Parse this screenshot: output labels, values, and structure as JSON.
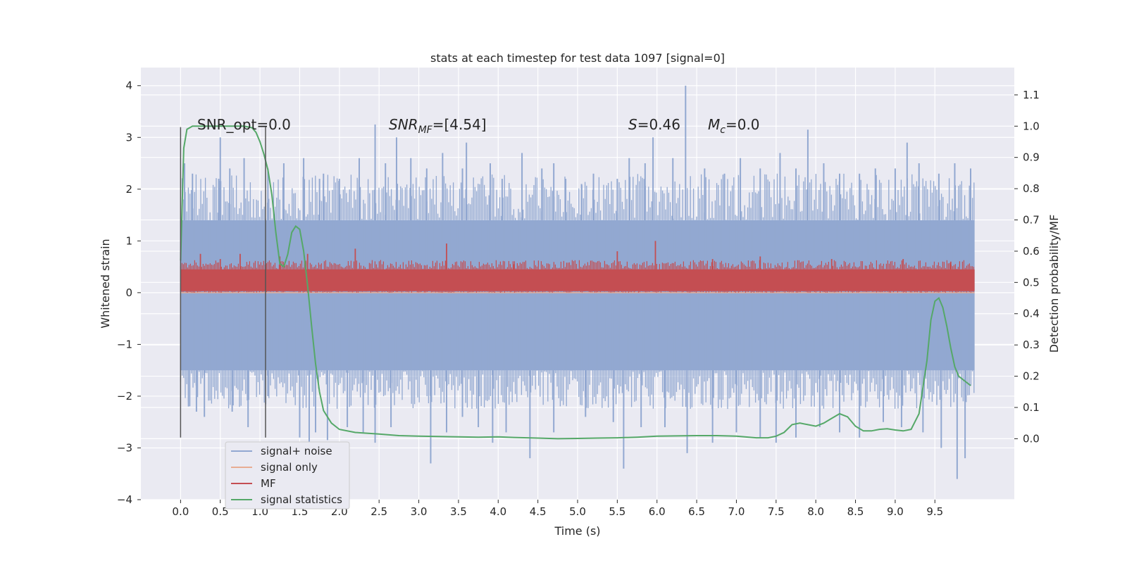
{
  "chart_data": {
    "type": "line",
    "title": "stats at each timestep for test data 1097 [signal=0]",
    "xlabel": "Time (s)",
    "ylabel": "Whitened strain",
    "y2label": "Detection probability/MF",
    "xlim": [
      -0.5,
      10.5
    ],
    "ylim": [
      -4.0,
      4.35
    ],
    "y2lim": [
      -0.195,
      1.1875
    ],
    "x_ticks": [
      "0.0",
      "0.5",
      "1.0",
      "1.5",
      "2.0",
      "2.5",
      "3.0",
      "3.5",
      "4.0",
      "4.5",
      "5.0",
      "5.5",
      "6.0",
      "6.5",
      "7.0",
      "7.5",
      "8.0",
      "8.5",
      "9.0",
      "9.5"
    ],
    "y_ticks": [
      "4",
      "3",
      "2",
      "1",
      "0",
      "−1",
      "−2",
      "−3",
      "−4"
    ],
    "y2_ticks": [
      "1.1",
      "1.0",
      "0.9",
      "0.8",
      "0.7",
      "0.6",
      "0.5",
      "0.4",
      "0.3",
      "0.2",
      "0.1",
      "0.0"
    ],
    "annotations": {
      "snr_opt_label": "SNR_opt=0.0",
      "snr_mf_base": "SNR",
      "snr_mf_sub": "MF",
      "snr_mf_tail": "=[4.54]",
      "s_label": "S",
      "s_value": "=0.46",
      "mc_base": "M",
      "mc_sub": "c",
      "mc_value": "=0.0"
    },
    "vertical_lines_x": [
      0.0,
      1.07
    ],
    "vertical_lines_y_range": [
      -2.8,
      3.2
    ],
    "grid": true,
    "legend_position": "lower-left",
    "series": [
      {
        "name": "signal+ noise",
        "color": "#92a8d1",
        "axis": "left",
        "t_start": 0.0,
        "t_end": 10.0,
        "band_upper": 1.4,
        "band_lower": -1.5,
        "peaks_upper": [
          [
            0.05,
            2.5
          ],
          [
            0.15,
            2.3
          ],
          [
            0.48,
            2.2
          ],
          [
            0.5,
            3.0
          ],
          [
            0.62,
            2.4
          ],
          [
            0.8,
            2.6
          ],
          [
            1.1,
            2.4
          ],
          [
            1.3,
            2.5
          ],
          [
            1.55,
            2.6
          ],
          [
            1.75,
            2.2
          ],
          [
            1.8,
            2.3
          ],
          [
            2.0,
            2.2
          ],
          [
            2.25,
            2.6
          ],
          [
            2.45,
            3.25
          ],
          [
            2.58,
            2.5
          ],
          [
            2.72,
            3.0
          ],
          [
            2.9,
            2.6
          ],
          [
            3.1,
            2.4
          ],
          [
            3.3,
            2.7
          ],
          [
            3.55,
            2.4
          ],
          [
            3.6,
            2.9
          ],
          [
            3.9,
            2.5
          ],
          [
            4.05,
            2.2
          ],
          [
            4.3,
            2.7
          ],
          [
            4.55,
            2.4
          ],
          [
            4.7,
            2.5
          ],
          [
            4.85,
            2.2
          ],
          [
            5.05,
            2.1
          ],
          [
            5.2,
            2.3
          ],
          [
            5.5,
            2.2
          ],
          [
            5.65,
            2.6
          ],
          [
            5.85,
            2.5
          ],
          [
            5.95,
            3.0
          ],
          [
            6.2,
            2.6
          ],
          [
            6.36,
            4.0
          ],
          [
            6.6,
            2.4
          ],
          [
            6.85,
            2.3
          ],
          [
            7.05,
            2.6
          ],
          [
            7.3,
            2.4
          ],
          [
            7.55,
            2.7
          ],
          [
            7.75,
            2.4
          ],
          [
            7.9,
            3.15
          ],
          [
            8.1,
            2.5
          ],
          [
            8.3,
            2.3
          ],
          [
            8.55,
            2.3
          ],
          [
            8.75,
            2.4
          ],
          [
            9.0,
            2.4
          ],
          [
            9.15,
            2.9
          ],
          [
            9.3,
            2.5
          ],
          [
            9.55,
            2.3
          ],
          [
            9.75,
            2.5
          ],
          [
            9.95,
            2.4
          ]
        ],
        "peaks_lower": [
          [
            0.1,
            -2.2
          ],
          [
            0.2,
            -2.3
          ],
          [
            0.3,
            -2.4
          ],
          [
            0.65,
            -2.3
          ],
          [
            0.85,
            -2.6
          ],
          [
            1.1,
            -2.0
          ],
          [
            1.5,
            -2.8
          ],
          [
            1.62,
            -2.9
          ],
          [
            1.7,
            -2.7
          ],
          [
            1.85,
            -2.85
          ],
          [
            2.1,
            -2.6
          ],
          [
            2.3,
            -2.7
          ],
          [
            2.45,
            -2.9
          ],
          [
            2.65,
            -2.6
          ],
          [
            3.15,
            -3.3
          ],
          [
            3.35,
            -2.7
          ],
          [
            3.55,
            -2.4
          ],
          [
            3.75,
            -2.6
          ],
          [
            3.93,
            -2.9
          ],
          [
            4.1,
            -2.7
          ],
          [
            4.4,
            -3.2
          ],
          [
            4.7,
            -2.7
          ],
          [
            5.1,
            -2.4
          ],
          [
            5.45,
            -2.5
          ],
          [
            5.58,
            -3.4
          ],
          [
            5.8,
            -2.6
          ],
          [
            6.1,
            -2.6
          ],
          [
            6.38,
            -3.1
          ],
          [
            6.7,
            -2.9
          ],
          [
            7.0,
            -2.7
          ],
          [
            7.3,
            -2.8
          ],
          [
            7.5,
            -2.9
          ],
          [
            7.75,
            -2.8
          ],
          [
            8.05,
            -2.6
          ],
          [
            8.3,
            -2.7
          ],
          [
            8.55,
            -2.8
          ],
          [
            8.85,
            -2.5
          ],
          [
            9.08,
            -2.6
          ],
          [
            9.35,
            -2.7
          ],
          [
            9.58,
            -3.0
          ],
          [
            9.78,
            -3.6
          ],
          [
            9.88,
            -3.2
          ]
        ]
      },
      {
        "name": "signal only",
        "color": "#e8ac93",
        "axis": "left",
        "x": [
          0.0,
          10.0
        ],
        "y": [
          0.0,
          0.0
        ]
      },
      {
        "name": "MF",
        "color": "#c44e52",
        "axis": "left",
        "t_start": 0.0,
        "t_end": 10.0,
        "band_upper": 0.45,
        "band_lower": 0.03,
        "peaks_upper": [
          [
            0.25,
            0.75
          ],
          [
            0.5,
            0.65
          ],
          [
            0.75,
            0.75
          ],
          [
            1.25,
            0.7
          ],
          [
            1.6,
            0.75
          ],
          [
            2.2,
            0.85
          ],
          [
            3.35,
            0.95
          ],
          [
            4.2,
            0.55
          ],
          [
            5.5,
            0.8
          ],
          [
            5.98,
            1.0
          ],
          [
            6.7,
            0.65
          ],
          [
            7.3,
            0.7
          ],
          [
            8.2,
            0.65
          ],
          [
            9.1,
            0.65
          ],
          [
            9.7,
            0.6
          ]
        ]
      },
      {
        "name": "signal statistics",
        "color": "#55a868",
        "axis": "right",
        "x": [
          0.0,
          0.04,
          0.08,
          0.15,
          0.22,
          0.3,
          0.4,
          0.5,
          0.6,
          0.7,
          0.8,
          0.9,
          0.95,
          1.0,
          1.05,
          1.1,
          1.15,
          1.2,
          1.25,
          1.3,
          1.35,
          1.4,
          1.45,
          1.5,
          1.55,
          1.6,
          1.65,
          1.7,
          1.75,
          1.8,
          1.85,
          1.9,
          2.0,
          2.2,
          2.5,
          2.75,
          3.0,
          3.25,
          3.5,
          3.75,
          4.0,
          4.2,
          4.5,
          4.75,
          5.0,
          5.25,
          5.5,
          5.75,
          6.0,
          6.25,
          6.5,
          6.75,
          7.0,
          7.25,
          7.4,
          7.5,
          7.6,
          7.7,
          7.8,
          7.9,
          8.0,
          8.1,
          8.2,
          8.3,
          8.4,
          8.5,
          8.6,
          8.7,
          8.8,
          8.9,
          9.0,
          9.1,
          9.2,
          9.3,
          9.4,
          9.45,
          9.5,
          9.55,
          9.6,
          9.65,
          9.7,
          9.75,
          9.8,
          9.9,
          9.95
        ],
        "y": [
          0.57,
          0.93,
          0.99,
          1.0,
          1.0,
          1.0,
          1.0,
          1.0,
          1.0,
          1.0,
          1.0,
          0.995,
          0.98,
          0.95,
          0.91,
          0.86,
          0.78,
          0.66,
          0.56,
          0.55,
          0.59,
          0.66,
          0.68,
          0.67,
          0.6,
          0.49,
          0.36,
          0.24,
          0.15,
          0.09,
          0.07,
          0.05,
          0.03,
          0.02,
          0.015,
          0.01,
          0.008,
          0.007,
          0.006,
          0.005,
          0.006,
          0.004,
          0.002,
          0.0,
          0.001,
          0.002,
          0.003,
          0.005,
          0.008,
          0.009,
          0.01,
          0.01,
          0.008,
          0.003,
          0.003,
          0.008,
          0.02,
          0.045,
          0.05,
          0.045,
          0.04,
          0.05,
          0.065,
          0.08,
          0.07,
          0.04,
          0.025,
          0.025,
          0.03,
          0.032,
          0.028,
          0.025,
          0.03,
          0.08,
          0.25,
          0.38,
          0.44,
          0.45,
          0.42,
          0.36,
          0.29,
          0.23,
          0.2,
          0.18,
          0.17
        ]
      }
    ]
  }
}
